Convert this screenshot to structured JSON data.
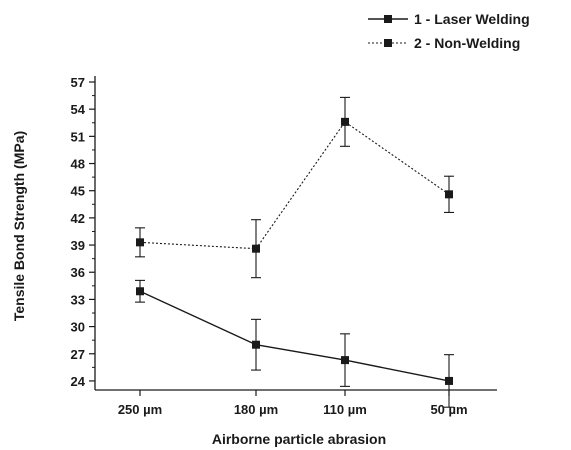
{
  "chart_data": {
    "type": "line",
    "title": "",
    "xlabel": "Airborne particle abrasion",
    "ylabel": "Tensile Bond Strength (MPa)",
    "categories": [
      "250 µm",
      "180 µm",
      "110 µm",
      "50 µm"
    ],
    "ylim": [
      23,
      57
    ],
    "yticks": [
      24,
      27,
      30,
      33,
      36,
      39,
      42,
      45,
      48,
      51,
      54,
      57
    ],
    "grid": false,
    "legend_position": "top-right",
    "series": [
      {
        "name": "1 - Laser Welding",
        "line_style": "solid",
        "marker": "square",
        "color": "#1a1a1a",
        "values": [
          33.9,
          28.0,
          26.3,
          24.0
        ],
        "error": [
          1.2,
          2.8,
          2.9,
          2.9
        ]
      },
      {
        "name": "2 - Non-Welding",
        "line_style": "dotted",
        "marker": "square",
        "color": "#1a1a1a",
        "values": [
          39.3,
          38.6,
          52.6,
          44.6
        ],
        "error": [
          1.6,
          3.2,
          2.7,
          2.0
        ]
      }
    ]
  }
}
